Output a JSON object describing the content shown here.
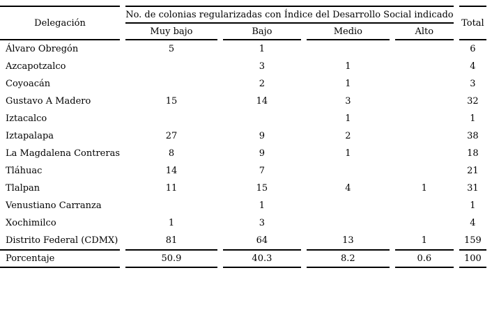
{
  "page": {
    "background_color": "#ffffff",
    "text_color": "#000000",
    "rule_color": "#000000"
  },
  "table": {
    "header": {
      "delegacion": "Delegación",
      "group": "No. de colonias regularizadas con Índice del Desarrollo Social indicado",
      "sub_columns": [
        "Muy bajo",
        "Bajo",
        "Medio",
        "Alto"
      ],
      "total": "Total"
    },
    "rows": [
      [
        "Álvaro Obregón",
        "5",
        "1",
        "",
        "",
        "6"
      ],
      [
        "Azcapotzalco",
        "",
        "3",
        "1",
        "",
        "4"
      ],
      [
        "Coyoacán",
        "",
        "2",
        "1",
        "",
        "3"
      ],
      [
        "Gustavo A Madero",
        "15",
        "14",
        "3",
        "",
        "32"
      ],
      [
        "Iztacalco",
        "",
        "",
        "1",
        "",
        "1"
      ],
      [
        "Iztapalapa",
        "27",
        "9",
        "2",
        "",
        "38"
      ],
      [
        "La Magdalena Contreras",
        "8",
        "9",
        "1",
        "",
        "18"
      ],
      [
        "Tláhuac",
        "14",
        "7",
        "",
        "",
        "21"
      ],
      [
        "Tlalpan",
        "11",
        "15",
        "4",
        "1",
        "31"
      ],
      [
        "Venustiano Carranza",
        "",
        "1",
        "",
        "",
        "1"
      ],
      [
        "Xochimilco",
        "1",
        "3",
        "",
        "",
        "4"
      ],
      [
        "Distrito Federal (CDMX)",
        "81",
        "64",
        "13",
        "1",
        "159"
      ]
    ],
    "footer": [
      "Porcentaje",
      "50.9",
      "40.3",
      "8.2",
      "0.6",
      "100"
    ]
  },
  "chart_data": {
    "type": "table",
    "title": "No. de colonias regularizadas con Índice del Desarrollo Social indicado",
    "columns": [
      "Delegación",
      "Muy bajo",
      "Bajo",
      "Medio",
      "Alto",
      "Total"
    ],
    "rows": [
      {
        "delegacion": "Álvaro Obregón",
        "muy_bajo": 5,
        "bajo": 1,
        "medio": null,
        "alto": null,
        "total": 6
      },
      {
        "delegacion": "Azcapotzalco",
        "muy_bajo": null,
        "bajo": 3,
        "medio": 1,
        "alto": null,
        "total": 4
      },
      {
        "delegacion": "Coyoacán",
        "muy_bajo": null,
        "bajo": 2,
        "medio": 1,
        "alto": null,
        "total": 3
      },
      {
        "delegacion": "Gustavo A Madero",
        "muy_bajo": 15,
        "bajo": 14,
        "medio": 3,
        "alto": null,
        "total": 32
      },
      {
        "delegacion": "Iztacalco",
        "muy_bajo": null,
        "bajo": null,
        "medio": 1,
        "alto": null,
        "total": 1
      },
      {
        "delegacion": "Iztapalapa",
        "muy_bajo": 27,
        "bajo": 9,
        "medio": 2,
        "alto": null,
        "total": 38
      },
      {
        "delegacion": "La Magdalena Contreras",
        "muy_bajo": 8,
        "bajo": 9,
        "medio": 1,
        "alto": null,
        "total": 18
      },
      {
        "delegacion": "Tláhuac",
        "muy_bajo": 14,
        "bajo": 7,
        "medio": null,
        "alto": null,
        "total": 21
      },
      {
        "delegacion": "Tlalpan",
        "muy_bajo": 11,
        "bajo": 15,
        "medio": 4,
        "alto": 1,
        "total": 31
      },
      {
        "delegacion": "Venustiano Carranza",
        "muy_bajo": null,
        "bajo": 1,
        "medio": null,
        "alto": null,
        "total": 1
      },
      {
        "delegacion": "Xochimilco",
        "muy_bajo": 1,
        "bajo": 3,
        "medio": null,
        "alto": null,
        "total": 4
      },
      {
        "delegacion": "Distrito Federal (CDMX)",
        "muy_bajo": 81,
        "bajo": 64,
        "medio": 13,
        "alto": 1,
        "total": 159
      },
      {
        "delegacion": "Porcentaje",
        "muy_bajo": 50.9,
        "bajo": 40.3,
        "medio": 8.2,
        "alto": 0.6,
        "total": 100
      }
    ]
  }
}
